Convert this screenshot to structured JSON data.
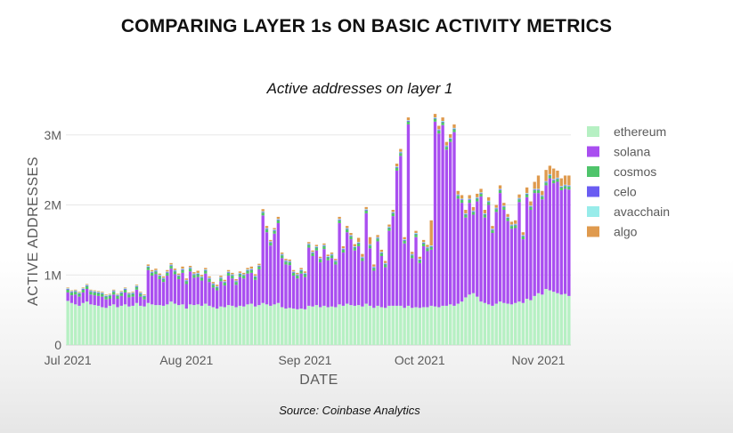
{
  "page": {
    "title": "COMPARING LAYER 1s ON BASIC ACTIVITY METRICS",
    "source": "Source: Coinbase Analytics"
  },
  "chart_data": {
    "type": "bar",
    "stacked": true,
    "title": "Active addresses on layer 1",
    "xlabel": "DATE",
    "ylabel": "ACTIVE ADDRESSES",
    "ylim": [
      0,
      3200000
    ],
    "yticks": [
      {
        "value": 0,
        "label": "0"
      },
      {
        "value": 1000000,
        "label": "1M"
      },
      {
        "value": 2000000,
        "label": "2M"
      },
      {
        "value": 3000000,
        "label": "3M"
      }
    ],
    "xticks": [
      {
        "index": 0,
        "label": "Jul 2021"
      },
      {
        "index": 31,
        "label": "Aug 2021"
      },
      {
        "index": 62,
        "label": "Sep 2021"
      },
      {
        "index": 92,
        "label": "Oct 2021"
      },
      {
        "index": 123,
        "label": "Nov 2021"
      }
    ],
    "start_label": "Jul 2021",
    "legend_position": "right",
    "grid": true,
    "colors": {
      "ethereum": "#b6f0c3",
      "solana": "#a94ef0",
      "cosmos": "#4fc46b",
      "celo": "#6a5cf2",
      "avacchain": "#98ecea",
      "algo": "#df9a4e"
    },
    "series_order": [
      "ethereum",
      "solana",
      "cosmos",
      "celo",
      "avacchain",
      "algo"
    ],
    "totals": [
      820000,
      780000,
      790000,
      760000,
      820000,
      870000,
      790000,
      780000,
      770000,
      760000,
      720000,
      730000,
      790000,
      730000,
      770000,
      820000,
      750000,
      760000,
      860000,
      760000,
      720000,
      1150000,
      1070000,
      1090000,
      1020000,
      980000,
      1070000,
      1170000,
      1090000,
      1020000,
      1120000,
      950000,
      1130000,
      1040000,
      1060000,
      1000000,
      1100000,
      980000,
      900000,
      860000,
      990000,
      930000,
      1070000,
      1030000,
      940000,
      1050000,
      1030000,
      1100000,
      1120000,
      1010000,
      1160000,
      1940000,
      1700000,
      1500000,
      1670000,
      1830000,
      1320000,
      1230000,
      1220000,
      1070000,
      1030000,
      1100000,
      1050000,
      1470000,
      1350000,
      1430000,
      1260000,
      1450000,
      1290000,
      1320000,
      1230000,
      1830000,
      1410000,
      1700000,
      1600000,
      1440000,
      1530000,
      1300000,
      1970000,
      1540000,
      1150000,
      1570000,
      1360000,
      1200000,
      1720000,
      1930000,
      2590000,
      2800000,
      1540000,
      3250000,
      1330000,
      1630000,
      1260000,
      1500000,
      1430000,
      1780000,
      3300000,
      3130000,
      3250000,
      2900000,
      3010000,
      3150000,
      2200000,
      2140000,
      1930000,
      2140000,
      1970000,
      2160000,
      2230000,
      1930000,
      2110000,
      1700000,
      2000000,
      2280000,
      2030000,
      1870000,
      1760000,
      1780000,
      2150000,
      1610000,
      2250000,
      2050000,
      2330000,
      2420000,
      2200000,
      2500000,
      2560000,
      2520000,
      2490000,
      2380000,
      2420000,
      2420000
    ],
    "ethereum": [
      630000,
      600000,
      580000,
      560000,
      600000,
      620000,
      580000,
      570000,
      560000,
      540000,
      530000,
      560000,
      580000,
      540000,
      560000,
      580000,
      550000,
      560000,
      600000,
      560000,
      550000,
      600000,
      580000,
      570000,
      570000,
      560000,
      580000,
      620000,
      590000,
      570000,
      580000,
      520000,
      580000,
      570000,
      580000,
      560000,
      590000,
      560000,
      540000,
      520000,
      550000,
      540000,
      570000,
      560000,
      540000,
      560000,
      550000,
      580000,
      590000,
      550000,
      570000,
      600000,
      580000,
      560000,
      580000,
      600000,
      540000,
      520000,
      530000,
      520000,
      510000,
      520000,
      510000,
      560000,
      550000,
      570000,
      540000,
      560000,
      540000,
      550000,
      540000,
      580000,
      560000,
      590000,
      570000,
      560000,
      570000,
      550000,
      590000,
      560000,
      530000,
      560000,
      540000,
      530000,
      560000,
      560000,
      560000,
      560000,
      530000,
      560000,
      530000,
      540000,
      530000,
      540000,
      540000,
      560000,
      550000,
      540000,
      560000,
      560000,
      580000,
      560000,
      590000,
      620000,
      680000,
      720000,
      740000,
      690000,
      620000,
      600000,
      580000,
      560000,
      590000,
      620000,
      600000,
      590000,
      580000,
      600000,
      620000,
      600000,
      660000,
      640000,
      700000,
      740000,
      720000,
      800000,
      780000,
      760000,
      740000,
      720000,
      730000,
      700000
    ],
    "cosmos": [
      40000,
      40000,
      40000,
      40000,
      40000,
      40000,
      40000,
      40000,
      40000,
      40000,
      40000,
      40000,
      40000,
      40000,
      40000,
      40000,
      40000,
      40000,
      40000,
      40000,
      40000,
      40000,
      40000,
      40000,
      40000,
      40000,
      40000,
      40000,
      40000,
      40000,
      40000,
      40000,
      40000,
      40000,
      40000,
      40000,
      40000,
      40000,
      40000,
      40000,
      40000,
      40000,
      40000,
      40000,
      40000,
      40000,
      40000,
      40000,
      40000,
      40000,
      40000,
      40000,
      40000,
      40000,
      40000,
      40000,
      40000,
      40000,
      40000,
      40000,
      40000,
      40000,
      40000,
      40000,
      40000,
      40000,
      40000,
      40000,
      40000,
      40000,
      40000,
      40000,
      40000,
      40000,
      40000,
      40000,
      40000,
      40000,
      40000,
      40000,
      40000,
      40000,
      40000,
      40000,
      40000,
      40000,
      40000,
      40000,
      40000,
      40000,
      40000,
      40000,
      40000,
      40000,
      40000,
      40000,
      40000,
      40000,
      40000,
      40000,
      40000,
      40000,
      40000,
      40000,
      40000,
      40000,
      40000,
      40000,
      40000,
      40000,
      40000,
      40000,
      40000,
      40000,
      40000,
      40000,
      40000,
      40000,
      40000,
      40000,
      40000,
      40000,
      40000,
      40000,
      40000,
      40000,
      40000,
      40000,
      40000,
      40000,
      40000,
      40000
    ],
    "celo": [
      10000,
      10000,
      10000,
      10000,
      10000,
      10000,
      10000,
      10000,
      10000,
      10000,
      10000,
      10000,
      10000,
      10000,
      10000,
      10000,
      10000,
      10000,
      10000,
      10000,
      10000,
      10000,
      10000,
      10000,
      10000,
      10000,
      10000,
      10000,
      10000,
      10000,
      10000,
      10000,
      10000,
      10000,
      10000,
      10000,
      10000,
      10000,
      10000,
      10000,
      10000,
      10000,
      10000,
      10000,
      10000,
      10000,
      10000,
      10000,
      10000,
      10000,
      10000,
      10000,
      10000,
      10000,
      10000,
      10000,
      10000,
      10000,
      10000,
      10000,
      10000,
      10000,
      10000,
      10000,
      10000,
      10000,
      10000,
      10000,
      10000,
      10000,
      10000,
      10000,
      10000,
      10000,
      10000,
      10000,
      10000,
      10000,
      10000,
      10000,
      10000,
      10000,
      10000,
      10000,
      10000,
      10000,
      10000,
      10000,
      10000,
      10000,
      10000,
      10000,
      10000,
      10000,
      10000,
      10000,
      10000,
      10000,
      10000,
      10000,
      10000,
      10000,
      10000,
      10000,
      10000,
      10000,
      10000,
      10000,
      10000,
      10000,
      10000,
      10000,
      10000,
      10000,
      10000,
      10000,
      10000,
      10000,
      10000,
      10000,
      10000,
      10000,
      10000,
      10000,
      10000,
      10000,
      10000,
      10000,
      10000,
      10000,
      10000,
      10000
    ],
    "avacchain": [
      10000,
      10000,
      10000,
      10000,
      10000,
      10000,
      10000,
      10000,
      10000,
      10000,
      10000,
      10000,
      10000,
      10000,
      10000,
      10000,
      10000,
      10000,
      10000,
      10000,
      10000,
      10000,
      10000,
      10000,
      10000,
      10000,
      10000,
      10000,
      10000,
      10000,
      10000,
      10000,
      10000,
      10000,
      10000,
      10000,
      10000,
      10000,
      10000,
      10000,
      10000,
      10000,
      10000,
      10000,
      10000,
      10000,
      10000,
      10000,
      10000,
      10000,
      10000,
      10000,
      10000,
      10000,
      10000,
      10000,
      10000,
      10000,
      10000,
      10000,
      10000,
      10000,
      10000,
      10000,
      10000,
      10000,
      10000,
      10000,
      10000,
      10000,
      10000,
      10000,
      10000,
      10000,
      10000,
      10000,
      10000,
      10000,
      10000,
      10000,
      10000,
      10000,
      10000,
      10000,
      10000,
      10000,
      10000,
      10000,
      10000,
      10000,
      10000,
      10000,
      10000,
      10000,
      10000,
      10000,
      10000,
      10000,
      10000,
      10000,
      10000,
      10000,
      10000,
      10000,
      10000,
      10000,
      10000,
      10000,
      10000,
      10000,
      10000,
      10000,
      10000,
      10000,
      10000,
      10000,
      10000,
      10000,
      10000,
      10000,
      10000,
      10000,
      10000,
      10000,
      10000,
      10000,
      10000,
      10000,
      10000,
      10000,
      10000,
      10000
    ],
    "algo": [
      10000,
      10000,
      10000,
      10000,
      10000,
      10000,
      10000,
      10000,
      10000,
      10000,
      10000,
      10000,
      10000,
      10000,
      10000,
      10000,
      10000,
      10000,
      10000,
      10000,
      10000,
      20000,
      20000,
      20000,
      20000,
      20000,
      20000,
      20000,
      20000,
      20000,
      30000,
      20000,
      20000,
      20000,
      30000,
      20000,
      20000,
      20000,
      20000,
      20000,
      20000,
      20000,
      20000,
      20000,
      20000,
      20000,
      20000,
      20000,
      30000,
      20000,
      20000,
      30000,
      30000,
      20000,
      20000,
      30000,
      20000,
      20000,
      20000,
      20000,
      20000,
      20000,
      20000,
      20000,
      20000,
      20000,
      20000,
      20000,
      20000,
      20000,
      20000,
      30000,
      30000,
      30000,
      30000,
      30000,
      60000,
      40000,
      30000,
      100000,
      30000,
      30000,
      30000,
      30000,
      30000,
      30000,
      40000,
      40000,
      30000,
      40000,
      30000,
      30000,
      30000,
      30000,
      30000,
      360000,
      50000,
      50000,
      50000,
      50000,
      50000,
      50000,
      50000,
      50000,
      50000,
      50000,
      50000,
      50000,
      50000,
      50000,
      50000,
      40000,
      40000,
      50000,
      40000,
      40000,
      40000,
      50000,
      50000,
      40000,
      80000,
      60000,
      100000,
      190000,
      60000,
      160000,
      120000,
      150000,
      100000,
      110000,
      130000,
      140000
    ],
    "legend": [
      {
        "name": "ethereum",
        "color": "#b6f0c3"
      },
      {
        "name": "solana",
        "color": "#a94ef0"
      },
      {
        "name": "cosmos",
        "color": "#4fc46b"
      },
      {
        "name": "celo",
        "color": "#6a5cf2"
      },
      {
        "name": "avacchain",
        "color": "#98ecea"
      },
      {
        "name": "algo",
        "color": "#df9a4e"
      }
    ]
  }
}
